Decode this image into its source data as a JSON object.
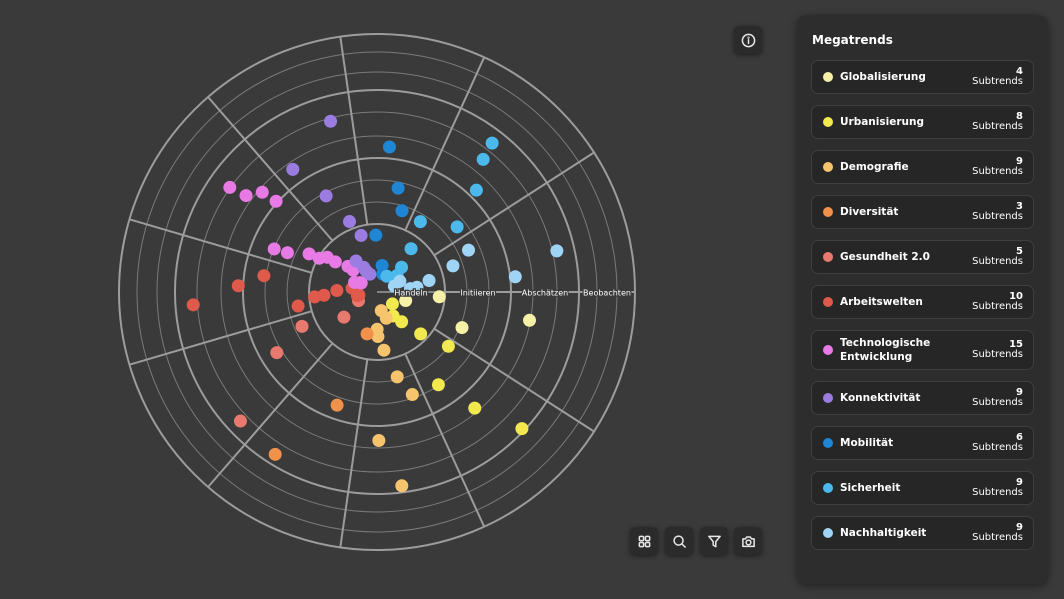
{
  "radar": {
    "rings": [
      "Handeln",
      "Initiieren",
      "Abschätzen",
      "Beobachten"
    ]
  },
  "sidebar": {
    "title": "Megatrends",
    "subtrend_label": "Subtrends",
    "megatrends": [
      {
        "name": "Globalisierung",
        "count": 4,
        "color": "#f6f1a6"
      },
      {
        "name": "Urbanisierung",
        "count": 8,
        "color": "#f2e94e"
      },
      {
        "name": "Demografie",
        "count": 9,
        "color": "#f6c46c"
      },
      {
        "name": "Diversität",
        "count": 3,
        "color": "#f2924a"
      },
      {
        "name": "Gesundheit 2.0",
        "count": 5,
        "color": "#e8796e"
      },
      {
        "name": "Arbeitswelten",
        "count": 10,
        "color": "#df5a4b"
      },
      {
        "name": "Technologische Entwicklung",
        "count": 15,
        "color": "#e87ae6"
      },
      {
        "name": "Konnektivität",
        "count": 9,
        "color": "#9b7ce0"
      },
      {
        "name": "Mobilität",
        "count": 6,
        "color": "#1f86d6"
      },
      {
        "name": "Sicherheit",
        "count": 9,
        "color": "#4cb9ec"
      },
      {
        "name": "Nachhaltigkeit",
        "count": 9,
        "color": "#a0d4f5"
      }
    ]
  }
}
